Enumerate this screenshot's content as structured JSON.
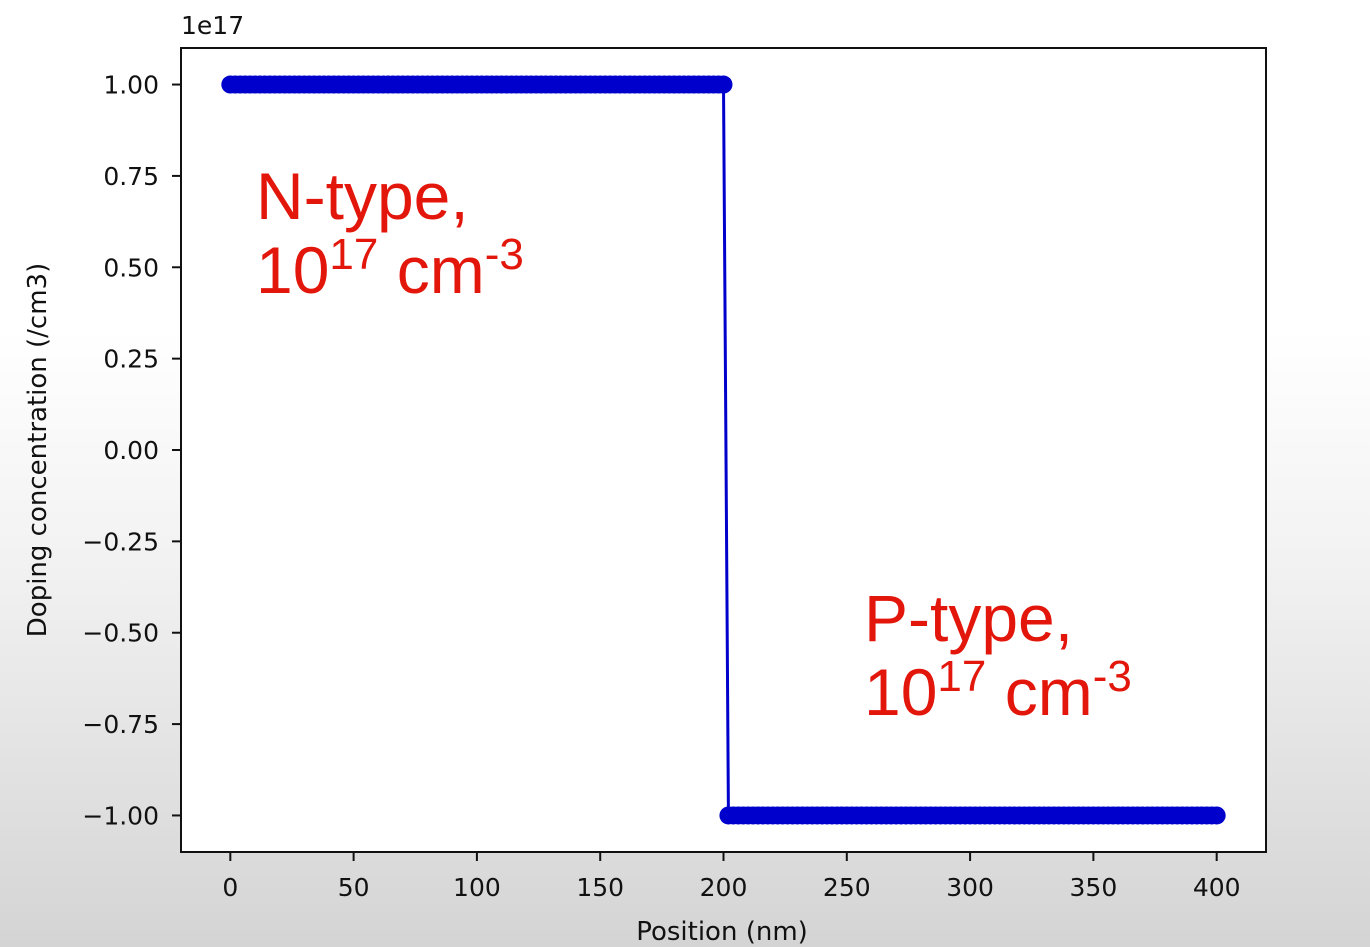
{
  "chart_data": {
    "type": "line",
    "xlabel": "Position (nm)",
    "ylabel": "Doping concentration (/cm3)",
    "y_offset_text": "1e17",
    "xlim": [
      -20,
      420
    ],
    "ylim": [
      -1.1,
      1.1
    ],
    "x_ticks": [
      0,
      50,
      100,
      150,
      200,
      250,
      300,
      350,
      400
    ],
    "x_tick_labels": [
      "0",
      "50",
      "100",
      "150",
      "200",
      "250",
      "300",
      "350",
      "400"
    ],
    "y_ticks": [
      1.0,
      0.75,
      0.5,
      0.25,
      0.0,
      -0.25,
      -0.5,
      -0.75,
      -1.0
    ],
    "y_tick_labels": [
      "1.00",
      "0.75",
      "0.50",
      "0.25",
      "0.00",
      "−0.25",
      "−0.50",
      "−0.75",
      "−1.00"
    ],
    "grid": false,
    "series": [
      {
        "color": "#0000cc",
        "marker": "circle",
        "x_start": 0,
        "x_end": 400,
        "x_step": 2,
        "step_at": 200,
        "y_left": 1.0,
        "y_right": -1.0
      }
    ],
    "annotations": [
      {
        "line1": "N-type,",
        "base": "10",
        "exp": "17",
        "unit": " cm",
        "unit_exp": "-3"
      },
      {
        "line1": "P-type,",
        "base": "10",
        "exp": "17",
        "unit": " cm",
        "unit_exp": "-3"
      }
    ],
    "annotation_color": "#e3160b"
  }
}
